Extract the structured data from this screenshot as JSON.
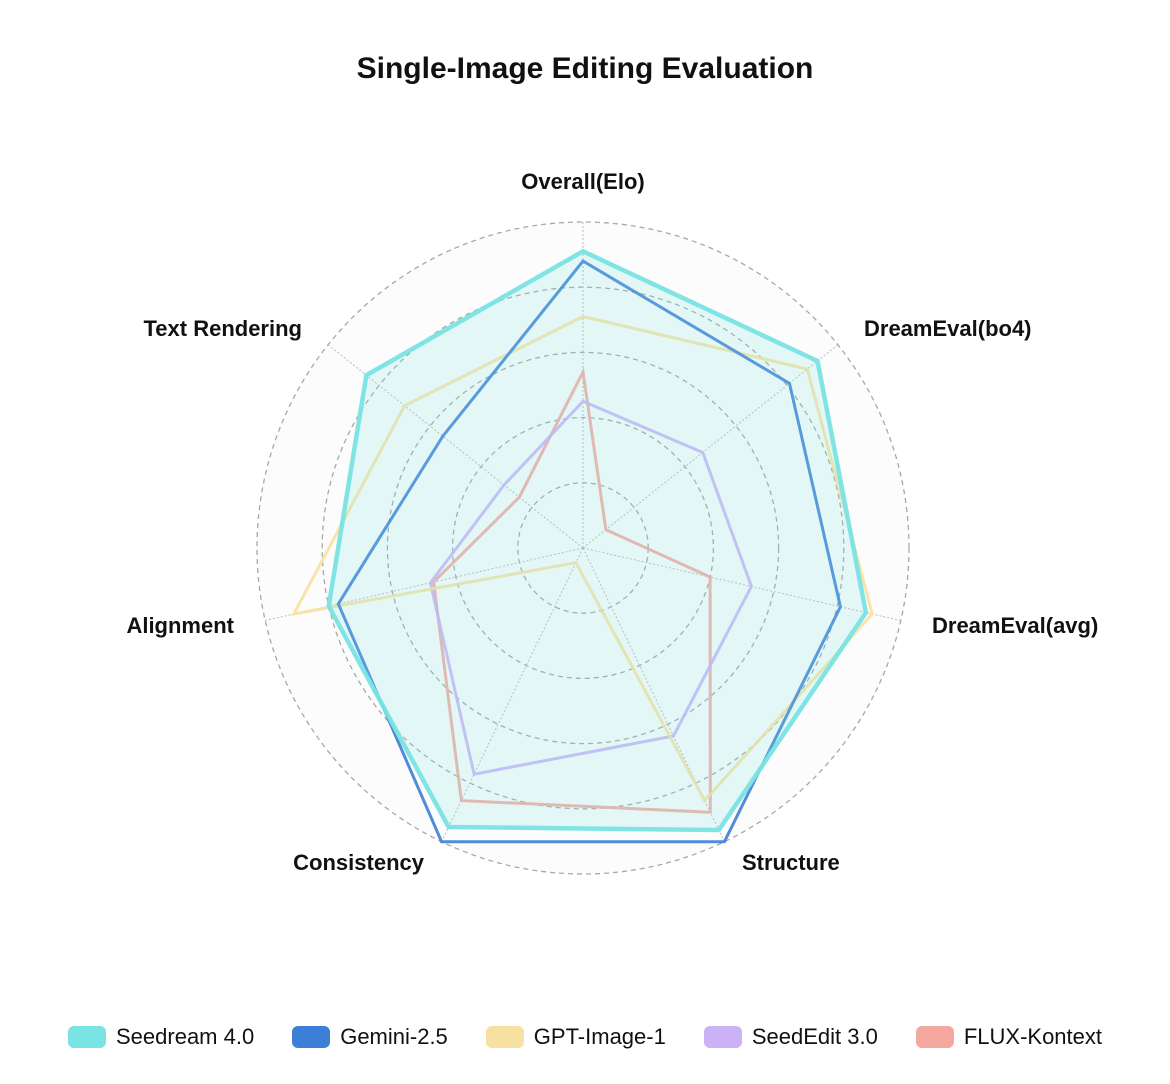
{
  "chart_data": {
    "type": "radar",
    "title": "Single-Image Editing Evaluation",
    "axes": [
      "Overall(Elo)",
      "DreamEval(bo4)",
      "DreamEval(avg)",
      "Structure",
      "Consistency",
      "Alignment",
      "Text Rendering"
    ],
    "range": [
      0,
      1
    ],
    "rings": 5,
    "grid": true,
    "legend_position": "bottom",
    "series": [
      {
        "name": "Seedream 4.0",
        "color": "#7ae3e3",
        "values": [
          0.91,
          0.92,
          0.89,
          0.96,
          0.95,
          0.8,
          0.85
        ]
      },
      {
        "name": "Gemini-2.5",
        "color": "#3d7fd6",
        "values": [
          0.88,
          0.81,
          0.81,
          1.0,
          1.0,
          0.77,
          0.55
        ]
      },
      {
        "name": "GPT-Image-1",
        "color": "#f7e1a0",
        "values": [
          0.71,
          0.88,
          0.91,
          0.86,
          0.05,
          0.91,
          0.7
        ]
      },
      {
        "name": "SeedEdit 3.0",
        "color": "#cbb2f7",
        "values": [
          0.45,
          0.47,
          0.53,
          0.64,
          0.77,
          0.48,
          0.31
        ]
      },
      {
        "name": "FLUX-Kontext",
        "color": "#f5a8a0",
        "values": [
          0.54,
          0.09,
          0.4,
          0.9,
          0.86,
          0.47,
          0.25
        ]
      }
    ]
  }
}
